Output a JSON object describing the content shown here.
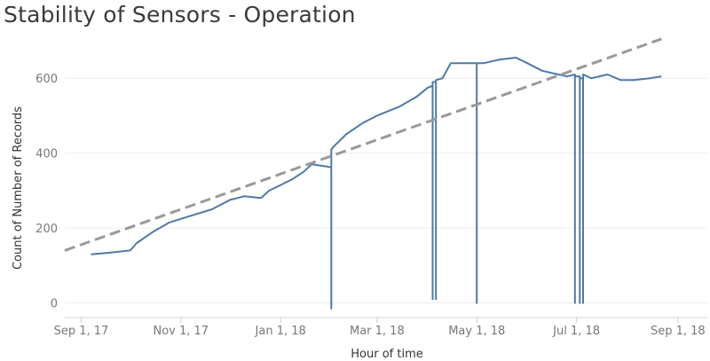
{
  "chart_data": {
    "type": "line",
    "title": "Stability of Sensors - Operation",
    "xlabel": "Hour of time",
    "ylabel": "Count of Number of Records",
    "xlim": [
      "2017-08-22",
      "2018-09-19"
    ],
    "ylim": [
      -20,
      700
    ],
    "x_ticks": [
      {
        "date": "2017-09-01",
        "label": "Sep 1, 17"
      },
      {
        "date": "2017-11-01",
        "label": "Nov 1, 17"
      },
      {
        "date": "2018-01-01",
        "label": "Jan 1, 18"
      },
      {
        "date": "2018-03-01",
        "label": "Mar 1, 18"
      },
      {
        "date": "2018-05-01",
        "label": "May 1, 18"
      },
      {
        "date": "2018-07-01",
        "label": "Jul 1, 18"
      },
      {
        "date": "2018-09-01",
        "label": "Sep 1, 18"
      }
    ],
    "y_ticks": [
      0,
      200,
      400,
      600
    ],
    "grid": true,
    "series": [
      {
        "color": "#4e79a7",
        "style": "solid",
        "x": [
          "2017-09-07",
          "2017-09-20",
          "2017-10-01",
          "2017-10-05",
          "2017-10-15",
          "2017-10-25",
          "2017-11-05",
          "2017-11-20",
          "2017-12-01",
          "2017-12-10",
          "2017-12-20",
          "2017-12-25",
          "2018-01-01",
          "2018-01-08",
          "2018-01-15",
          "2018-01-20",
          "2018-01-28",
          "2018-02-01",
          "2018-02-01",
          "2018-02-01",
          "2018-02-03",
          "2018-02-10",
          "2018-02-20",
          "2018-03-01",
          "2018-03-15",
          "2018-03-25",
          "2018-04-01",
          "2018-04-04",
          "2018-04-04",
          "2018-04-04",
          "2018-04-06",
          "2018-04-06",
          "2018-04-06",
          "2018-04-10",
          "2018-04-15",
          "2018-04-20",
          "2018-05-01",
          "2018-05-01",
          "2018-05-01",
          "2018-05-05",
          "2018-05-15",
          "2018-05-25",
          "2018-06-01",
          "2018-06-10",
          "2018-06-20",
          "2018-06-25",
          "2018-06-30",
          "2018-06-30",
          "2018-06-30",
          "2018-07-03",
          "2018-07-03",
          "2018-07-03",
          "2018-07-05",
          "2018-07-05",
          "2018-07-05",
          "2018-07-10",
          "2018-07-20",
          "2018-07-28",
          "2018-08-05",
          "2018-08-15",
          "2018-08-22"
        ],
        "y": [
          130,
          135,
          140,
          160,
          190,
          215,
          230,
          250,
          275,
          285,
          280,
          300,
          315,
          330,
          350,
          370,
          365,
          362,
          -15,
          410,
          420,
          450,
          480,
          500,
          525,
          550,
          575,
          580,
          10,
          590,
          590,
          10,
          595,
          600,
          640,
          640,
          640,
          0,
          640,
          640,
          650,
          655,
          640,
          620,
          610,
          605,
          610,
          0,
          605,
          605,
          0,
          600,
          600,
          0,
          610,
          600,
          610,
          595,
          595,
          600,
          605
        ]
      },
      {
        "color": "#999999",
        "style": "dashed",
        "x": [
          "2017-08-22",
          "2018-08-22"
        ],
        "y": [
          140,
          705
        ]
      }
    ]
  }
}
